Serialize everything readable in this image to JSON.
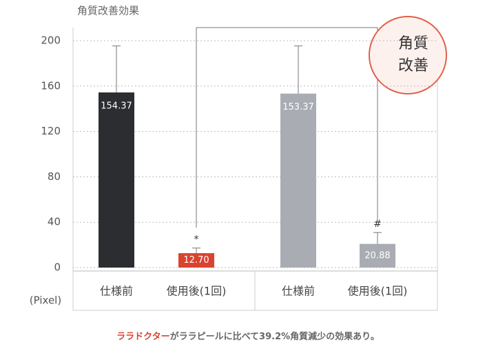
{
  "chart_data": {
    "type": "bar",
    "title": "角質改善効果",
    "y_unit": "(Pixel)",
    "categories": [
      "仕様前",
      "使用後(1回)",
      "仕様前",
      "使用後(1回)"
    ],
    "values": [
      154.37,
      12.7,
      153.37,
      20.88
    ],
    "value_labels": [
      "154.37",
      "12.70",
      "153.37",
      "20.88"
    ],
    "errors": [
      41,
      4.5,
      42,
      10
    ],
    "colors": [
      "#2b2d31",
      "#d9432f",
      "#a9adb3",
      "#a9adb3"
    ],
    "markers": [
      null,
      "*",
      null,
      "#"
    ],
    "ylim": [
      0,
      200
    ],
    "yticks": [
      0,
      40,
      80,
      120,
      160,
      200
    ],
    "grid": true,
    "callout": [
      "角質",
      "改善"
    ],
    "footer": [
      "ララドクター",
      "がララピールに比べて39.2%角質減少の効果あり。"
    ]
  }
}
